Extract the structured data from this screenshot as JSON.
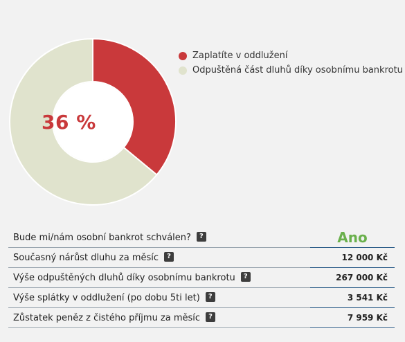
{
  "chart_data": {
    "type": "pie",
    "center_label": "36 %",
    "slices": [
      {
        "name": "Zaplatíte v oddlužení",
        "value": 36,
        "color": "#c9393b"
      },
      {
        "name": "Odpuštěná část dluhů díky osobnímu bankrotu",
        "value": 64,
        "color": "#e0e3cd"
      }
    ],
    "legend_position": "right"
  },
  "summary": {
    "help_label": "?",
    "rows": [
      {
        "label": "Bude mi/nám osobní bankrot schválen?",
        "value": "Ano",
        "accent": "#6ab04c"
      },
      {
        "label": "Současný nárůst dluhu za měsíc",
        "value": "12 000 Kč"
      },
      {
        "label": "Výše odpuštěných dluhů díky osobnímu bankrotu",
        "value": "267 000 Kč"
      },
      {
        "label": "Výše splátky v oddlužení (po dobu 5ti let)",
        "value": "3 541 Kč"
      },
      {
        "label": "Zůstatek peněz z čistého příjmu za měsíc",
        "value": "7 959 Kč"
      }
    ]
  }
}
